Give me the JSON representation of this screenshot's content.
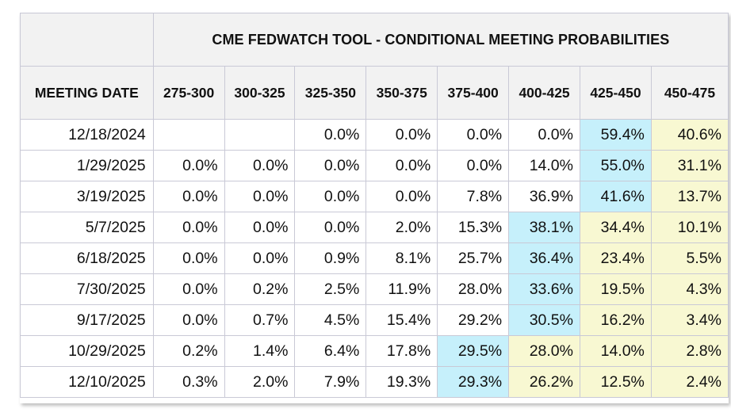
{
  "chart_data": {
    "type": "table",
    "title": "CME FEDWATCH TOOL - CONDITIONAL MEETING PROBABILITIES",
    "row_header": "MEETING DATE",
    "columns": [
      "275-300",
      "300-325",
      "325-350",
      "350-375",
      "375-400",
      "400-425",
      "425-450",
      "450-475"
    ],
    "colors": {
      "header_bg": "#f2f2f2",
      "max_prob_bg": "#c6f0fb",
      "above_max_bg": "#f8f8d2",
      "border": "#c9c9d6"
    },
    "rows": [
      {
        "date": "12/18/2024",
        "values": [
          "",
          "",
          "0.0%",
          "0.0%",
          "0.0%",
          "0.0%",
          "59.4%",
          "40.6%"
        ],
        "highlight": [
          "",
          "",
          "",
          "",
          "",
          "",
          "blue",
          "yellow"
        ]
      },
      {
        "date": "1/29/2025",
        "values": [
          "0.0%",
          "0.0%",
          "0.0%",
          "0.0%",
          "0.0%",
          "14.0%",
          "55.0%",
          "31.1%"
        ],
        "highlight": [
          "",
          "",
          "",
          "",
          "",
          "",
          "blue",
          "yellow"
        ]
      },
      {
        "date": "3/19/2025",
        "values": [
          "0.0%",
          "0.0%",
          "0.0%",
          "0.0%",
          "7.8%",
          "36.9%",
          "41.6%",
          "13.7%"
        ],
        "highlight": [
          "",
          "",
          "",
          "",
          "",
          "",
          "blue",
          "yellow"
        ]
      },
      {
        "date": "5/7/2025",
        "values": [
          "0.0%",
          "0.0%",
          "0.0%",
          "2.0%",
          "15.3%",
          "38.1%",
          "34.4%",
          "10.1%"
        ],
        "highlight": [
          "",
          "",
          "",
          "",
          "",
          "blue",
          "yellow",
          "yellow"
        ]
      },
      {
        "date": "6/18/2025",
        "values": [
          "0.0%",
          "0.0%",
          "0.9%",
          "8.1%",
          "25.7%",
          "36.4%",
          "23.4%",
          "5.5%"
        ],
        "highlight": [
          "",
          "",
          "",
          "",
          "",
          "blue",
          "yellow",
          "yellow"
        ]
      },
      {
        "date": "7/30/2025",
        "values": [
          "0.0%",
          "0.2%",
          "2.5%",
          "11.9%",
          "28.0%",
          "33.6%",
          "19.5%",
          "4.3%"
        ],
        "highlight": [
          "",
          "",
          "",
          "",
          "",
          "blue",
          "yellow",
          "yellow"
        ]
      },
      {
        "date": "9/17/2025",
        "values": [
          "0.0%",
          "0.7%",
          "4.5%",
          "15.4%",
          "29.2%",
          "30.5%",
          "16.2%",
          "3.4%"
        ],
        "highlight": [
          "",
          "",
          "",
          "",
          "",
          "blue",
          "yellow",
          "yellow"
        ]
      },
      {
        "date": "10/29/2025",
        "values": [
          "0.2%",
          "1.4%",
          "6.4%",
          "17.8%",
          "29.5%",
          "28.0%",
          "14.0%",
          "2.8%"
        ],
        "highlight": [
          "",
          "",
          "",
          "",
          "blue",
          "yellow",
          "yellow",
          "yellow"
        ]
      },
      {
        "date": "12/10/2025",
        "values": [
          "0.3%",
          "2.0%",
          "7.9%",
          "19.3%",
          "29.3%",
          "26.2%",
          "12.5%",
          "2.4%"
        ],
        "highlight": [
          "",
          "",
          "",
          "",
          "blue",
          "yellow",
          "yellow",
          "yellow"
        ]
      }
    ]
  }
}
